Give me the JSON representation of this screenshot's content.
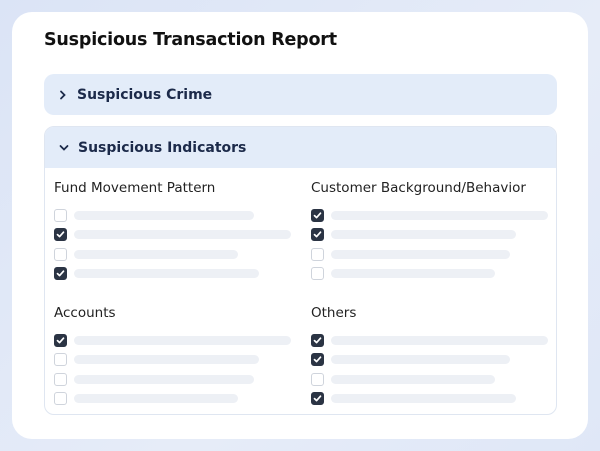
{
  "title": "Suspicious Transaction Report",
  "sections": [
    {
      "label": "Suspicious Crime",
      "expanded": false,
      "icon": "chevron-right-icon"
    },
    {
      "label": "Suspicious Indicators",
      "expanded": true,
      "icon": "chevron-down-icon"
    }
  ],
  "groups": [
    {
      "label": "Fund Movement Pattern",
      "checked": [
        false,
        true,
        false,
        true
      ]
    },
    {
      "label": "Customer Background/Behavior",
      "checked": [
        true,
        true,
        false,
        false
      ]
    },
    {
      "label": "Accounts",
      "checked": [
        true,
        false,
        false,
        false
      ]
    },
    {
      "label": "Others",
      "checked": [
        true,
        true,
        false,
        true
      ]
    }
  ],
  "colors": {
    "accordion_header": "#e3ecf9",
    "checkbox_checked": "#2b3444",
    "placeholder_bar": "#edf0f5"
  }
}
